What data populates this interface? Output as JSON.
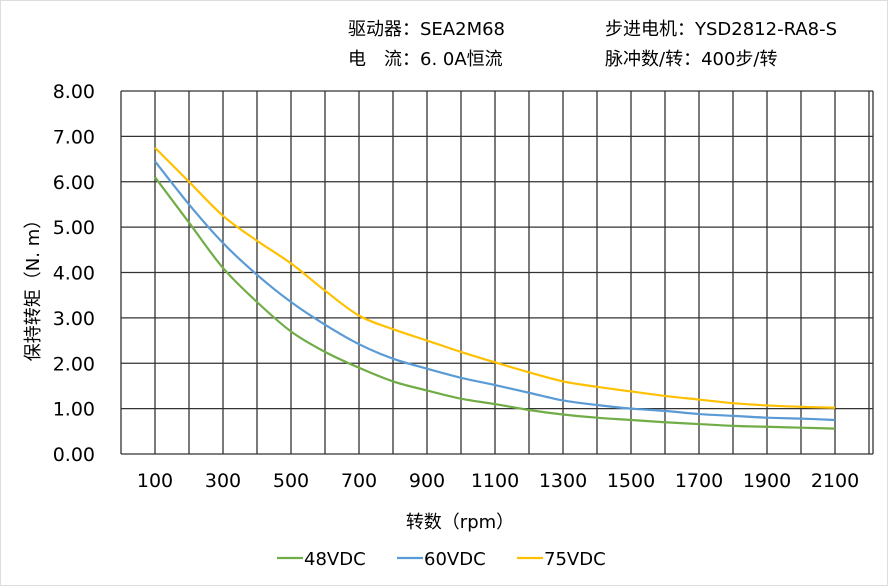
{
  "header": {
    "driver": "驱动器：SEA2M68",
    "motor": "步进电机：YSD2812-RA8-S",
    "current": "电　流：6. 0A恒流",
    "pulses": "脉冲数/转：400步/转"
  },
  "chart_data": {
    "type": "line",
    "xlabel": "转数（rpm）",
    "ylabel": "保持转矩（N. m）",
    "xlim": [
      0,
      2200
    ],
    "ylim": [
      0,
      8
    ],
    "grid": true,
    "legend_position": "bottom",
    "x_ticks": [
      "100",
      "300",
      "500",
      "700",
      "900",
      "1100",
      "1300",
      "1500",
      "1700",
      "1900",
      "2100"
    ],
    "y_ticks": [
      "0.00",
      "1.00",
      "2.00",
      "3.00",
      "4.00",
      "5.00",
      "6.00",
      "7.00",
      "8.00"
    ],
    "x": [
      100,
      200,
      300,
      400,
      500,
      600,
      700,
      800,
      900,
      1000,
      1100,
      1200,
      1300,
      1400,
      1500,
      1600,
      1700,
      1800,
      1900,
      2000,
      2100
    ],
    "series": [
      {
        "name": "48VDC",
        "color": "#70ad47",
        "values": [
          6.1,
          5.1,
          4.1,
          3.35,
          2.7,
          2.25,
          1.9,
          1.6,
          1.4,
          1.22,
          1.1,
          0.97,
          0.87,
          0.8,
          0.75,
          0.7,
          0.66,
          0.62,
          0.6,
          0.58,
          0.56
        ]
      },
      {
        "name": "60VDC",
        "color": "#5b9bd5",
        "values": [
          6.45,
          5.5,
          4.65,
          3.95,
          3.35,
          2.85,
          2.42,
          2.1,
          1.88,
          1.68,
          1.52,
          1.35,
          1.18,
          1.08,
          1.0,
          0.95,
          0.88,
          0.84,
          0.8,
          0.78,
          0.75
        ]
      },
      {
        "name": "75VDC",
        "color": "#ffc000",
        "values": [
          6.75,
          6.0,
          5.25,
          4.7,
          4.2,
          3.6,
          3.05,
          2.75,
          2.5,
          2.25,
          2.02,
          1.8,
          1.6,
          1.48,
          1.38,
          1.28,
          1.2,
          1.12,
          1.07,
          1.04,
          1.02
        ]
      }
    ]
  }
}
